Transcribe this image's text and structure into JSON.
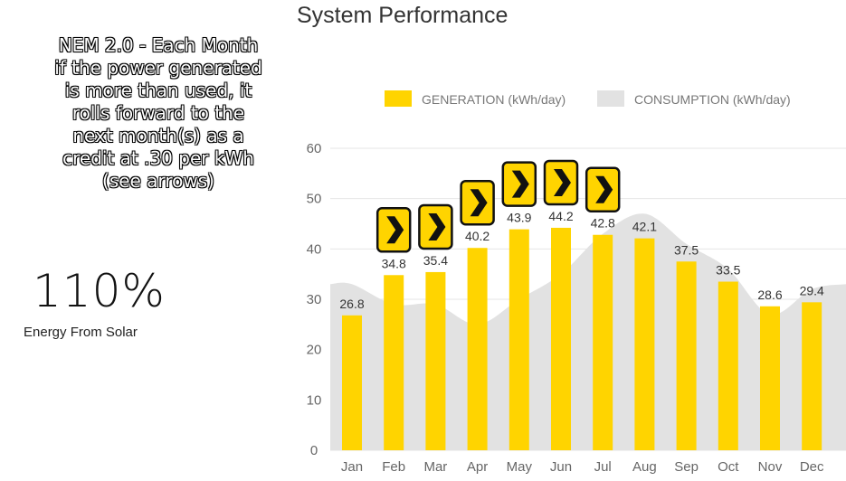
{
  "title": "System Performance",
  "note": "NEM 2.0 - Each Month\nif the power generated\nis more than used, it\nrolls forward to the\nnext month(s) as a\ncredit at .30 per kWh\n(see arrows)",
  "stat": {
    "value": "110%",
    "label": "Energy From Solar"
  },
  "colors": {
    "generation": "#FFD400",
    "consumption": "#E2E2E2",
    "grid": "#E6E6E6",
    "arrow_fill": "#FFD400",
    "arrow_stroke": "#111111"
  },
  "chart_data": {
    "type": "bar",
    "categories": [
      "Jan",
      "Feb",
      "Mar",
      "Apr",
      "May",
      "Jun",
      "Jul",
      "Aug",
      "Sep",
      "Oct",
      "Nov",
      "Dec"
    ],
    "series": [
      {
        "name": "GENERATION (kWh/day)",
        "type": "bar",
        "values": [
          26.8,
          34.8,
          35.4,
          40.2,
          43.9,
          44.2,
          42.8,
          42.1,
          37.5,
          33.5,
          28.6,
          29.4
        ]
      },
      {
        "name": "CONSUMPTION (kWh/day)",
        "type": "area",
        "values": [
          33,
          29,
          29,
          25,
          30,
          35,
          43,
          47,
          41,
          36,
          27,
          32
        ]
      }
    ],
    "arrow_months": [
      "Feb",
      "Mar",
      "Apr",
      "May",
      "Jun",
      "Jul"
    ],
    "ylim": [
      0,
      60
    ],
    "yticks": [
      0,
      10,
      20,
      30,
      40,
      50,
      60
    ],
    "legend_position": "top",
    "grid": true
  }
}
